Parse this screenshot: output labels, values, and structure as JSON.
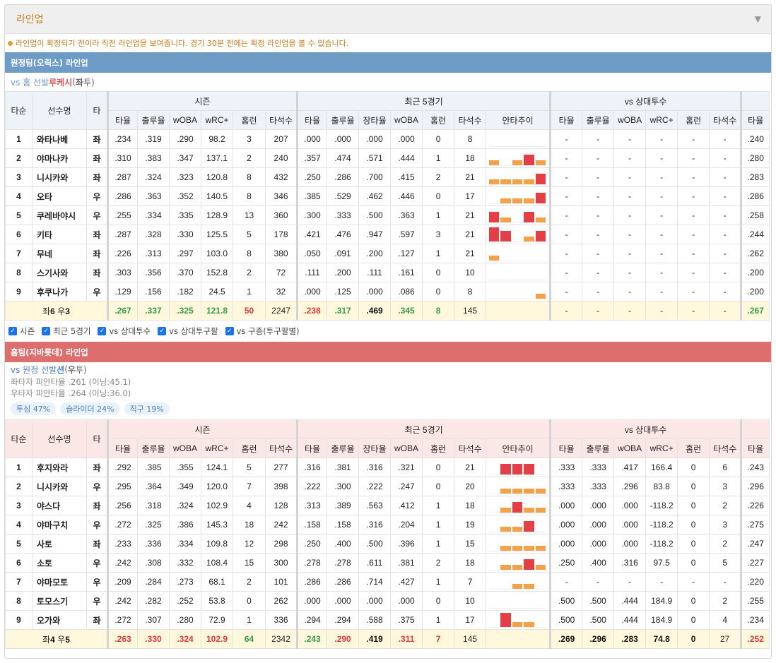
{
  "panel": {
    "title": "라인업",
    "collapse_icon": "caret-down-icon"
  },
  "notice": "라인업이 확정되기 전이라 직전 라인업을 보여줍니다. 경기 30분 전에는 확정 라인업을 볼 수 있습니다.",
  "headers": {
    "order": "타순",
    "name": "선수명",
    "hand": "타",
    "groups": [
      "시즌",
      "최근 5경기",
      "vs 상대투수"
    ],
    "season_cols": [
      "타율",
      "출루율",
      "wOBA",
      "wRC+",
      "홈런",
      "타석수"
    ],
    "recent_cols": [
      "타율",
      "출루율",
      "장타율",
      "wOBA",
      "홈런",
      "타석수",
      "안타추이"
    ],
    "vs_cols": [
      "타율",
      "출루율",
      "wOBA",
      "wRC+",
      "홈런",
      "타석수"
    ],
    "extra_col": "타율"
  },
  "away": {
    "bar_title": "원정팀(오릭스) 라인업",
    "vs_prefix": "vs 홈 선발 ",
    "pitcher": "루케시",
    "hand_open": " (",
    "hand_strong": "좌",
    "hand_close": "투)",
    "rows": [
      {
        "order": "1",
        "name": "와타나베",
        "hand": "좌",
        "season": [
          ".234",
          ".319",
          ".290",
          "98.2",
          "3",
          "207"
        ],
        "recent": [
          ".000",
          ".000",
          ".000",
          ".000",
          "0",
          "8"
        ],
        "spark": [],
        "vs": [
          "-",
          "-",
          "-",
          "-",
          "-",
          "-"
        ],
        "extra": ".240"
      },
      {
        "order": "2",
        "name": "야마나카",
        "hand": "좌",
        "season": [
          ".310",
          ".383",
          ".347",
          "137.1",
          "2",
          "240"
        ],
        "recent": [
          ".357",
          ".474",
          ".571",
          ".444",
          "1",
          "18"
        ],
        "spark": [
          1,
          0,
          1,
          2,
          1
        ],
        "vs": [
          "-",
          "-",
          "-",
          "-",
          "-",
          "-"
        ],
        "extra": ".280"
      },
      {
        "order": "3",
        "name": "니시카와",
        "hand": "좌",
        "season": [
          ".287",
          ".324",
          ".323",
          "120.8",
          "8",
          "432"
        ],
        "recent": [
          ".250",
          ".286",
          ".700",
          ".415",
          "2",
          "21"
        ],
        "spark": [
          1,
          1,
          1,
          1,
          2
        ],
        "vs": [
          "-",
          "-",
          "-",
          "-",
          "-",
          "-"
        ],
        "extra": ".283"
      },
      {
        "order": "4",
        "name": "오타",
        "hand": "우",
        "season": [
          ".286",
          ".363",
          ".352",
          "140.5",
          "8",
          "346"
        ],
        "recent": [
          ".385",
          ".529",
          ".462",
          ".446",
          "0",
          "17"
        ],
        "spark": [
          0,
          1,
          1,
          1,
          2
        ],
        "vs": [
          "-",
          "-",
          "-",
          "-",
          "-",
          "-"
        ],
        "extra": ".286"
      },
      {
        "order": "5",
        "name": "쿠레바야시",
        "hand": "우",
        "season": [
          ".255",
          ".334",
          ".335",
          "128.9",
          "13",
          "360"
        ],
        "recent": [
          ".300",
          ".333",
          ".500",
          ".363",
          "1",
          "21"
        ],
        "spark": [
          2,
          1,
          0,
          2,
          1
        ],
        "vs": [
          "-",
          "-",
          "-",
          "-",
          "-",
          "-"
        ],
        "extra": ".258"
      },
      {
        "order": "6",
        "name": "키타",
        "hand": "좌",
        "season": [
          ".287",
          ".328",
          ".330",
          "125.5",
          "5",
          "178"
        ],
        "recent": [
          ".421",
          ".476",
          ".947",
          ".597",
          "3",
          "21"
        ],
        "spark": [
          3,
          2,
          0,
          1,
          2
        ],
        "vs": [
          "-",
          "-",
          "-",
          "-",
          "-",
          "-"
        ],
        "extra": ".244"
      },
      {
        "order": "7",
        "name": "무네",
        "hand": "좌",
        "season": [
          ".226",
          ".313",
          ".297",
          "103.0",
          "8",
          "380"
        ],
        "recent": [
          ".050",
          ".091",
          ".200",
          ".127",
          "1",
          "21"
        ],
        "spark": [
          1,
          0,
          0,
          0,
          0
        ],
        "vs": [
          "-",
          "-",
          "-",
          "-",
          "-",
          "-"
        ],
        "extra": ".262"
      },
      {
        "order": "8",
        "name": "스기사와",
        "hand": "좌",
        "season": [
          ".303",
          ".356",
          ".370",
          "152.8",
          "2",
          "72"
        ],
        "recent": [
          ".111",
          ".200",
          ".111",
          ".161",
          "0",
          "10"
        ],
        "spark": [],
        "vs": [
          "-",
          "-",
          "-",
          "-",
          "-",
          "-"
        ],
        "extra": ".200"
      },
      {
        "order": "9",
        "name": "후쿠나가",
        "hand": "우",
        "season": [
          ".129",
          ".156",
          ".182",
          "24.5",
          "1",
          "32"
        ],
        "recent": [
          ".000",
          ".125",
          ".000",
          ".086",
          "0",
          "8"
        ],
        "spark": [
          0,
          0,
          0,
          0,
          1
        ],
        "vs": [
          "-",
          "-",
          "-",
          "-",
          "-",
          "-"
        ],
        "extra": ".200"
      }
    ],
    "total": {
      "prefix": "좌",
      "left": "6",
      "mid": " 우",
      "right": "3",
      "season": [
        ".267",
        ".337",
        ".325",
        "121.8",
        "50",
        "2247"
      ],
      "recent": [
        ".238",
        ".317",
        ".469",
        ".345",
        "8",
        "145"
      ],
      "vs": [
        "-",
        "-",
        "-",
        "-",
        "-",
        "-"
      ],
      "extra": ".267"
    }
  },
  "filters": [
    "시즌",
    "최근 5경기",
    "vs 상대투수",
    "vs 상대투구팔",
    "vs 구종(투구팔별)"
  ],
  "home": {
    "bar_title": "홈팀(지바롯데) 라인업",
    "vs_prefix": "vs 원정 선발 ",
    "pitcher": "션",
    "hand_open": " (",
    "hand_strong": "우",
    "hand_close": "투)",
    "info": [
      "좌타자 피안타율 .261 (이닝:45.1)",
      "우타자 피안타율 .264 (이닝:36.0)"
    ],
    "badges": [
      "투심 47%",
      "슬라이더 24%",
      "직구 19%"
    ],
    "rows": [
      {
        "order": "1",
        "name": "후지와라",
        "hand": "좌",
        "season": [
          ".292",
          ".385",
          ".355",
          "124.1",
          "5",
          "277"
        ],
        "recent": [
          ".316",
          ".381",
          ".316",
          ".321",
          "0",
          "21"
        ],
        "spark": [
          0,
          2,
          2,
          2,
          0
        ],
        "vs": [
          ".333",
          ".333",
          ".417",
          "166.4",
          "0",
          "6"
        ],
        "extra": ".243"
      },
      {
        "order": "2",
        "name": "니시카와",
        "hand": "우",
        "season": [
          ".295",
          ".364",
          ".349",
          "120.0",
          "7",
          "398"
        ],
        "recent": [
          ".222",
          ".300",
          ".222",
          ".247",
          "0",
          "20"
        ],
        "spark": [
          0,
          1,
          1,
          1,
          1
        ],
        "vs": [
          ".333",
          ".333",
          ".296",
          "83.8",
          "0",
          "3"
        ],
        "extra": ".296"
      },
      {
        "order": "3",
        "name": "야스다",
        "hand": "좌",
        "season": [
          ".256",
          ".318",
          ".324",
          "102.9",
          "4",
          "128"
        ],
        "recent": [
          ".313",
          ".389",
          ".563",
          ".412",
          "1",
          "18"
        ],
        "spark": [
          0,
          1,
          2,
          1,
          1
        ],
        "vs": [
          ".000",
          ".000",
          ".000",
          "-118.2",
          "0",
          "2"
        ],
        "extra": ".226"
      },
      {
        "order": "4",
        "name": "야마구치",
        "hand": "우",
        "season": [
          ".272",
          ".325",
          ".386",
          "145.3",
          "18",
          "242"
        ],
        "recent": [
          ".158",
          ".158",
          ".316",
          ".204",
          "1",
          "19"
        ],
        "spark": [
          0,
          1,
          1,
          2,
          0
        ],
        "vs": [
          ".000",
          ".000",
          ".000",
          "-118.2",
          "0",
          "3"
        ],
        "extra": ".275"
      },
      {
        "order": "5",
        "name": "사토",
        "hand": "좌",
        "season": [
          ".233",
          ".336",
          ".334",
          "109.8",
          "12",
          "298"
        ],
        "recent": [
          ".250",
          ".400",
          ".500",
          ".396",
          "1",
          "15"
        ],
        "spark": [
          0,
          1,
          1,
          1,
          1
        ],
        "vs": [
          ".000",
          ".000",
          ".000",
          "-118.2",
          "0",
          "2"
        ],
        "extra": ".247"
      },
      {
        "order": "6",
        "name": "소토",
        "hand": "우",
        "season": [
          ".242",
          ".308",
          ".332",
          "108.4",
          "15",
          "300"
        ],
        "recent": [
          ".278",
          ".278",
          ".611",
          ".381",
          "2",
          "18"
        ],
        "spark": [
          0,
          1,
          1,
          2,
          1
        ],
        "vs": [
          ".250",
          ".400",
          ".316",
          "97.5",
          "0",
          "5"
        ],
        "extra": ".227"
      },
      {
        "order": "7",
        "name": "야마모토",
        "hand": "우",
        "season": [
          ".209",
          ".284",
          ".273",
          "68.1",
          "2",
          "101"
        ],
        "recent": [
          ".286",
          ".286",
          ".714",
          ".427",
          "1",
          "7"
        ],
        "spark": [
          0,
          0,
          1,
          1,
          0
        ],
        "vs": [
          "-",
          "-",
          "-",
          "-",
          "-",
          "-"
        ],
        "extra": ".220"
      },
      {
        "order": "8",
        "name": "토모스기",
        "hand": "우",
        "season": [
          ".242",
          ".282",
          ".252",
          "53.8",
          "0",
          "262"
        ],
        "recent": [
          ".000",
          ".000",
          ".000",
          ".000",
          "0",
          "10"
        ],
        "spark": [],
        "vs": [
          ".500",
          ".500",
          ".444",
          "184.9",
          "0",
          "2"
        ],
        "extra": ".255"
      },
      {
        "order": "9",
        "name": "오가와",
        "hand": "좌",
        "season": [
          ".272",
          ".307",
          ".280",
          "72.9",
          "1",
          "336"
        ],
        "recent": [
          ".294",
          ".294",
          ".588",
          ".375",
          "1",
          "17"
        ],
        "spark": [
          0,
          3,
          1,
          1,
          0
        ],
        "vs": [
          ".500",
          ".500",
          ".444",
          "184.9",
          "0",
          "4"
        ],
        "extra": ".234"
      }
    ],
    "total": {
      "prefix": "좌",
      "left": "4",
      "mid": " 우",
      "right": "5",
      "season": [
        ".263",
        ".330",
        ".324",
        "102.9",
        "64",
        "2342"
      ],
      "recent": [
        ".243",
        ".290",
        ".419",
        ".311",
        "7",
        "145"
      ],
      "vs": [
        ".269",
        ".296",
        ".283",
        "74.8",
        "0",
        "27"
      ],
      "extra": ".252"
    }
  },
  "colors": {
    "away_bar": "#6f9bc7",
    "home_bar": "#dc6f6d",
    "total_bg": "#fff8dd",
    "spark_orange": "#f3a24a",
    "spark_red": "#e43e46",
    "green": "#3a9b48",
    "red": "#e03b3b"
  }
}
